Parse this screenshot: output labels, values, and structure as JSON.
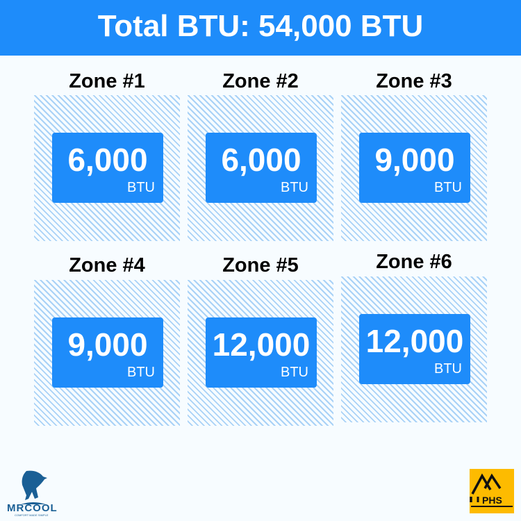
{
  "header": {
    "title": "Total BTU: 54,000 BTU"
  },
  "zones": [
    {
      "title": "Zone #1",
      "value": "6,000",
      "unit": "BTU"
    },
    {
      "title": "Zone #2",
      "value": "6,000",
      "unit": "BTU"
    },
    {
      "title": "Zone #3",
      "value": "9,000",
      "unit": "BTU"
    },
    {
      "title": "Zone #4",
      "value": "9,000",
      "unit": "BTU"
    },
    {
      "title": "Zone #5",
      "value": "12,000",
      "unit": "BTU"
    },
    {
      "title": "Zone #6",
      "value": "12,000",
      "unit": "BTU"
    }
  ],
  "logos": {
    "left": "MRCOOL",
    "left_tagline": "COMFORT MADE SIMPLE",
    "right": "PHS"
  },
  "colors": {
    "accent": "#1e8cfa",
    "hatch": "#a9d2f7",
    "phs": "#fdbb00",
    "mrcool": "#1a5f95"
  }
}
